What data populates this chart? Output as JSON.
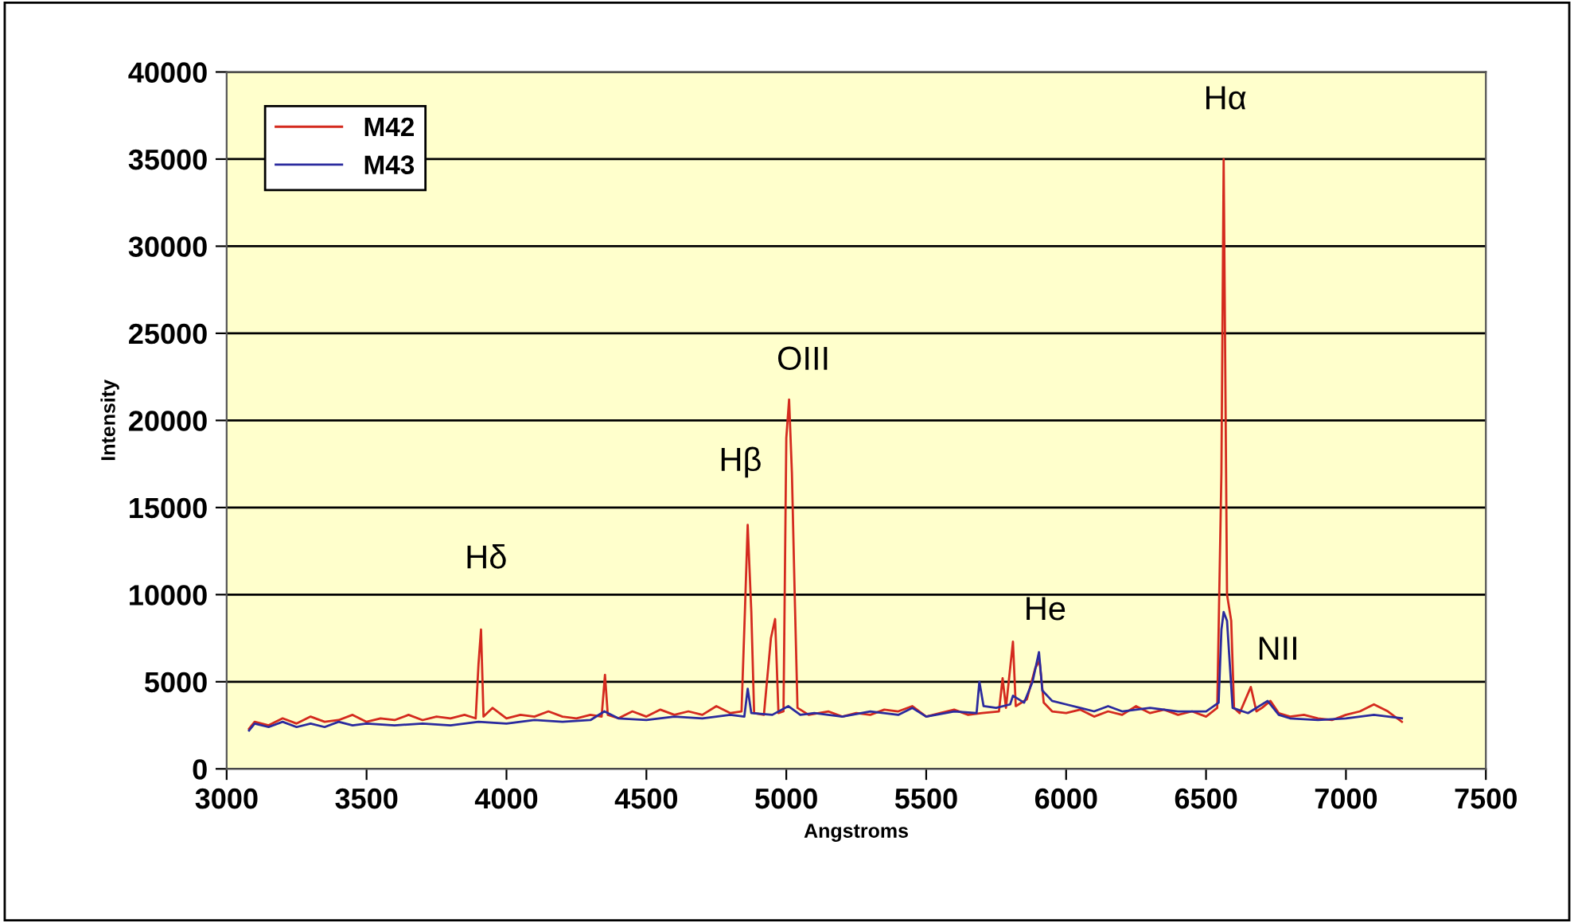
{
  "chart_data": {
    "type": "line",
    "xlabel": "Angstroms",
    "ylabel": "Intensity",
    "xlim": [
      3000,
      7500
    ],
    "xticks": [
      3000,
      3500,
      4000,
      4500,
      5000,
      5500,
      6000,
      6500,
      7000,
      7500
    ],
    "ylim": [
      0,
      40000
    ],
    "yticks": [
      0,
      5000,
      10000,
      15000,
      20000,
      25000,
      30000,
      35000,
      40000
    ],
    "grid": "y",
    "legend": "top left",
    "marker": "none",
    "line_style": "solid",
    "series": [
      {
        "name": "M42",
        "color": "#d42a1e",
        "x": [
          3080,
          3100,
          3150,
          3200,
          3250,
          3300,
          3350,
          3400,
          3450,
          3500,
          3550,
          3600,
          3650,
          3700,
          3750,
          3800,
          3850,
          3890,
          3900,
          3909,
          3918,
          3950,
          4000,
          4050,
          4100,
          4150,
          4200,
          4250,
          4300,
          4340,
          4352,
          4362,
          4400,
          4450,
          4500,
          4550,
          4600,
          4650,
          4700,
          4750,
          4800,
          4840,
          4852,
          4862,
          4875,
          4885,
          4920,
          4945,
          4960,
          4972,
          4990,
          5000,
          5010,
          5020,
          5030,
          5040,
          5080,
          5150,
          5200,
          5250,
          5300,
          5350,
          5400,
          5450,
          5500,
          5550,
          5600,
          5650,
          5700,
          5760,
          5773,
          5785,
          5810,
          5820,
          5860,
          5890,
          5905,
          5920,
          5950,
          6000,
          6050,
          6100,
          6150,
          6200,
          6250,
          6300,
          6350,
          6400,
          6450,
          6500,
          6540,
          6555,
          6563,
          6575,
          6590,
          6600,
          6620,
          6660,
          6680,
          6700,
          6730,
          6760,
          6800,
          6850,
          6900,
          6950,
          7000,
          7050,
          7100,
          7150,
          7200
        ],
        "values": [
          2300,
          2700,
          2500,
          2900,
          2600,
          3000,
          2700,
          2800,
          3100,
          2700,
          2900,
          2800,
          3100,
          2800,
          3000,
          2900,
          3100,
          2900,
          6000,
          8000,
          3000,
          3500,
          2900,
          3100,
          3000,
          3300,
          3000,
          2900,
          3100,
          3000,
          5400,
          3100,
          2900,
          3300,
          3000,
          3400,
          3100,
          3300,
          3100,
          3600,
          3200,
          3300,
          9000,
          14000,
          9000,
          3200,
          3100,
          7500,
          8600,
          3200,
          3300,
          19000,
          21200,
          17000,
          10000,
          3500,
          3100,
          3300,
          3000,
          3200,
          3100,
          3400,
          3300,
          3600,
          3000,
          3200,
          3400,
          3100,
          3200,
          3300,
          5200,
          3500,
          7300,
          3600,
          4000,
          5800,
          6200,
          3800,
          3300,
          3200,
          3400,
          3000,
          3300,
          3100,
          3600,
          3200,
          3400,
          3100,
          3300,
          3000,
          3500,
          17000,
          35000,
          10000,
          8500,
          3500,
          3200,
          4700,
          3300,
          3500,
          3900,
          3200,
          3000,
          3100,
          2900,
          2800,
          3100,
          3300,
          3700,
          3300,
          2700
        ]
      },
      {
        "name": "M43",
        "color": "#2a2a9e",
        "x": [
          3080,
          3100,
          3150,
          3200,
          3250,
          3300,
          3350,
          3400,
          3450,
          3500,
          3600,
          3700,
          3800,
          3900,
          4000,
          4100,
          4200,
          4300,
          4350,
          4400,
          4500,
          4600,
          4700,
          4800,
          4850,
          4862,
          4875,
          4950,
          5007,
          5050,
          5100,
          5200,
          5300,
          5400,
          5450,
          5500,
          5600,
          5680,
          5690,
          5705,
          5750,
          5800,
          5810,
          5850,
          5880,
          5903,
          5915,
          5950,
          6000,
          6050,
          6100,
          6150,
          6200,
          6300,
          6400,
          6500,
          6545,
          6555,
          6563,
          6575,
          6585,
          6595,
          6650,
          6720,
          6760,
          6800,
          6900,
          7000,
          7100,
          7200
        ],
        "values": [
          2200,
          2600,
          2400,
          2700,
          2400,
          2600,
          2400,
          2700,
          2500,
          2600,
          2500,
          2600,
          2500,
          2700,
          2600,
          2800,
          2700,
          2800,
          3300,
          2900,
          2800,
          3000,
          2900,
          3100,
          3000,
          4600,
          3200,
          3100,
          3600,
          3100,
          3200,
          3000,
          3300,
          3100,
          3500,
          3000,
          3300,
          3200,
          5000,
          3600,
          3500,
          3700,
          4200,
          3800,
          5000,
          6700,
          4500,
          3900,
          3700,
          3500,
          3300,
          3600,
          3300,
          3500,
          3300,
          3300,
          3800,
          8000,
          9000,
          8500,
          6000,
          3500,
          3200,
          3900,
          3100,
          2900,
          2800,
          2900,
          3100,
          2900
        ]
      }
    ],
    "annotations": [
      "Hδ",
      "Hβ",
      "OIII",
      "He",
      "Hα",
      "NII"
    ]
  }
}
